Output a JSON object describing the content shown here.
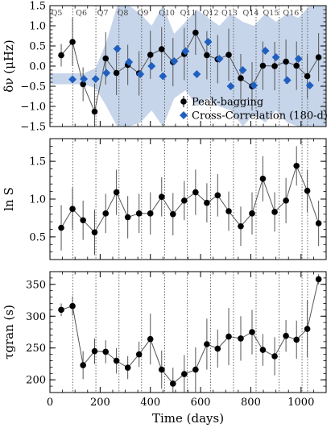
{
  "chart_data": [
    {
      "type": "scatter",
      "ylabel": "δν (μHz)",
      "ylim": [
        -1.5,
        1.5
      ],
      "yticks": [
        "−1.5",
        "−1.0",
        "−0.5",
        "0.0",
        "0.5",
        "1.0",
        "1.5"
      ],
      "quarter_labels": [
        "Q5",
        "Q6",
        "Q7",
        "Q8",
        "Q9",
        "Q10",
        "Q11",
        "Q12",
        "Q13",
        "Q14",
        "Q15",
        "Q16"
      ],
      "quarter_label_x": [
        2,
        100,
        185,
        265,
        345,
        430,
        515,
        605,
        680,
        765,
        845,
        925
      ],
      "quarter_bounds": [
        91,
        183,
        275,
        365,
        457,
        547,
        640,
        731,
        821,
        913,
        1004,
        1026
      ],
      "legend": [
        "Peak-bagging",
        "Cross-Correlation (180-d)"
      ],
      "series": [
        {
          "name": "Peak-bagging",
          "color": "#000000",
          "x": [
            45,
            90,
            132,
            178,
            222,
            265,
            310,
            355,
            400,
            445,
            490,
            535,
            580,
            625,
            668,
            712,
            760,
            805,
            848,
            895,
            940,
            982,
            1025,
            1070
          ],
          "y": [
            0.27,
            0.6,
            -0.45,
            -1.13,
            0.19,
            -0.17,
            0.03,
            -0.18,
            0.28,
            0.42,
            0.1,
            0.3,
            0.83,
            0.27,
            0.17,
            0.28,
            -0.3,
            -0.5,
            0.01,
            0.0,
            0.11,
            0.01,
            -0.25,
            0.22
          ],
          "err": [
            0.28,
            0.6,
            0.42,
            0.7,
            0.65,
            0.55,
            0.5,
            0.55,
            0.6,
            0.55,
            0.6,
            0.65,
            0.55,
            0.6,
            0.6,
            0.65,
            0.6,
            0.6,
            0.6,
            0.6,
            0.55,
            0.6,
            0.55,
            0.6
          ]
        },
        {
          "name": "Cross-Correlation (180-d)",
          "color": "#1f5fbf",
          "x": [
            90,
            135,
            182,
            225,
            268,
            315,
            360,
            405,
            450,
            495,
            540,
            585,
            630,
            675,
            720,
            768,
            812,
            858,
            900,
            945,
            990,
            1035
          ],
          "y": [
            -0.33,
            -0.32,
            -0.32,
            -0.17,
            0.43,
            0.1,
            -0.2,
            0.0,
            -0.25,
            0.12,
            0.37,
            -0.2,
            0.6,
            0.18,
            -0.5,
            -0.1,
            -0.48,
            0.38,
            0.22,
            -0.35,
            0.18,
            -0.48
          ]
        }
      ],
      "band": {
        "color": "#c6d5ea",
        "x": [
          0,
          90,
          135,
          182,
          225,
          268,
          315,
          360,
          405,
          450,
          495,
          540,
          585,
          630,
          675,
          720,
          768,
          812,
          858,
          900,
          945,
          990,
          1035,
          1100
        ],
        "hi": [
          -0.18,
          -0.18,
          -0.18,
          -0.05,
          0.6,
          1.5,
          1.5,
          1.3,
          1.0,
          1.5,
          0.8,
          1.1,
          1.4,
          1.2,
          1.0,
          1.3,
          1.1,
          1.0,
          1.3,
          1.1,
          1.3,
          1.2,
          1.5,
          1.5
        ],
        "lo": [
          -0.45,
          -0.45,
          -0.45,
          -0.55,
          -1.0,
          -1.5,
          -1.5,
          -1.4,
          -1.1,
          -1.5,
          -0.8,
          -0.6,
          -1.0,
          -0.8,
          -1.0,
          -1.1,
          -1.5,
          -1.2,
          -1.4,
          -1.1,
          -1.4,
          -1.5,
          -1.5,
          -1.5
        ]
      }
    },
    {
      "type": "scatter",
      "ylabel": "ln S",
      "ylim": [
        0.2,
        1.8
      ],
      "yticks": [
        "0.5",
        "1.0",
        "1.5"
      ],
      "series": [
        {
          "name": "",
          "color": "#000000",
          "x": [
            45,
            90,
            132,
            178,
            222,
            265,
            310,
            355,
            400,
            445,
            490,
            535,
            580,
            625,
            668,
            712,
            760,
            805,
            848,
            895,
            940,
            982,
            1025,
            1070
          ],
          "y": [
            0.62,
            0.87,
            0.72,
            0.56,
            0.81,
            1.09,
            0.76,
            0.81,
            0.81,
            1.03,
            0.8,
            0.98,
            1.09,
            0.95,
            1.05,
            0.84,
            0.64,
            0.81,
            1.27,
            0.83,
            0.98,
            1.44,
            1.11,
            0.68
          ],
          "err": [
            0.3,
            0.28,
            0.26,
            0.3,
            0.26,
            0.3,
            0.28,
            0.26,
            0.28,
            0.26,
            0.28,
            0.26,
            0.3,
            0.26,
            0.28,
            0.26,
            0.26,
            0.28,
            0.3,
            0.26,
            0.3,
            0.26,
            0.28,
            0.3
          ]
        }
      ]
    },
    {
      "type": "scatter",
      "xlabel": "Time (days)",
      "ylabel": "τgran (s)",
      "xlim": [
        0,
        1100
      ],
      "xticks": [
        "0",
        "200",
        "400",
        "600",
        "800",
        "1000"
      ],
      "ylim": [
        180,
        370
      ],
      "yticks": [
        "200",
        "250",
        "300",
        "350"
      ],
      "series": [
        {
          "name": "",
          "color": "#000000",
          "x": [
            45,
            90,
            132,
            178,
            222,
            265,
            310,
            355,
            400,
            445,
            490,
            535,
            580,
            625,
            668,
            712,
            760,
            805,
            848,
            895,
            940,
            982,
            1025,
            1070
          ],
          "y": [
            310,
            316,
            223,
            245,
            244,
            230,
            219,
            240,
            264,
            216,
            194,
            209,
            216,
            256,
            249,
            268,
            265,
            275,
            247,
            237,
            269,
            263,
            280,
            358
          ],
          "err": [
            10,
            15,
            22,
            20,
            18,
            20,
            18,
            20,
            40,
            30,
            25,
            30,
            35,
            40,
            30,
            45,
            35,
            35,
            25,
            30,
            25,
            30,
            45,
            8
          ]
        }
      ]
    }
  ]
}
